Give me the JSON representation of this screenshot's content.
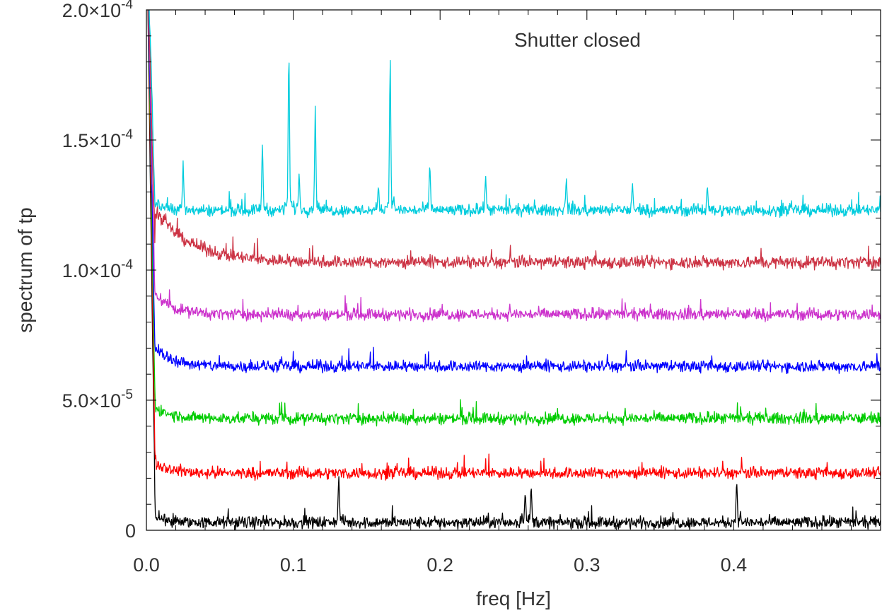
{
  "chart_data": {
    "type": "line",
    "title": "",
    "annotation": "Shutter closed",
    "xlabel": "freq [Hz]",
    "ylabel": "spectrum of tp",
    "xlim": [
      0.0,
      0.5
    ],
    "ylim": [
      0,
      0.0002
    ],
    "log_scale": false,
    "grid": false,
    "legend": "none",
    "x_ticks": [
      0.0,
      0.1,
      0.2,
      0.3,
      0.4
    ],
    "x_tick_labels": [
      "0.0",
      "0.1",
      "0.2",
      "0.3",
      "0.4"
    ],
    "y_ticks": [
      0,
      5e-05,
      0.0001,
      0.00015,
      0.0002
    ],
    "y_tick_labels": [
      {
        "mantissa": "0",
        "exponent": ""
      },
      {
        "mantissa": "5.0×10",
        "exponent": "-5"
      },
      {
        "mantissa": "1.0×10",
        "exponent": "-4"
      },
      {
        "mantissa": "1.5×10",
        "exponent": "-4"
      },
      {
        "mantissa": "2.0×10",
        "exponent": "-4"
      }
    ],
    "series": [
      {
        "color": "#000000",
        "baseline": 3e-06,
        "low_freq_excess": 5e-06,
        "low_freq_decay": 0.008,
        "noise": 1.2e-06,
        "peaks": [
          {
            "x": 0.131,
            "y": 2.2e-05
          },
          {
            "x": 0.258,
            "y": 1.5e-05
          },
          {
            "x": 0.262,
            "y": 1.8e-05
          },
          {
            "x": 0.402,
            "y": 2e-05
          }
        ]
      },
      {
        "color": "#ff0000",
        "baseline": 2.2e-05,
        "low_freq_excess": 8e-06,
        "low_freq_decay": 0.01,
        "noise": 1.2e-06,
        "peaks": []
      },
      {
        "color": "#00cc00",
        "baseline": 4.3e-05,
        "low_freq_excess": 8e-06,
        "low_freq_decay": 0.01,
        "noise": 1.2e-06,
        "peaks": []
      },
      {
        "color": "#0000ff",
        "baseline": 6.3e-05,
        "low_freq_excess": 1.2e-05,
        "low_freq_decay": 0.012,
        "noise": 1.2e-06,
        "peaks": []
      },
      {
        "color": "#cc33cc",
        "baseline": 8.3e-05,
        "low_freq_excess": 1.3e-05,
        "low_freq_decay": 0.012,
        "noise": 1.2e-06,
        "peaks": []
      },
      {
        "color": "#cc3344",
        "baseline": 0.000103,
        "low_freq_excess": 2.5e-05,
        "low_freq_decay": 0.025,
        "noise": 1.3e-06,
        "peaks": []
      },
      {
        "color": "#00ccdd",
        "baseline": 0.000123,
        "low_freq_excess": 6e-06,
        "low_freq_decay": 0.008,
        "noise": 1.2e-06,
        "peaks": [
          {
            "x": 0.025,
            "y": 0.000142
          },
          {
            "x": 0.079,
            "y": 0.00015
          },
          {
            "x": 0.097,
            "y": 0.000189
          },
          {
            "x": 0.104,
            "y": 0.000138
          },
          {
            "x": 0.115,
            "y": 0.000163
          },
          {
            "x": 0.158,
            "y": 0.000133
          },
          {
            "x": 0.166,
            "y": 0.000185
          },
          {
            "x": 0.193,
            "y": 0.000142
          },
          {
            "x": 0.231,
            "y": 0.000137
          },
          {
            "x": 0.286,
            "y": 0.000136
          },
          {
            "x": 0.331,
            "y": 0.000134
          },
          {
            "x": 0.382,
            "y": 0.000133
          }
        ]
      }
    ]
  }
}
